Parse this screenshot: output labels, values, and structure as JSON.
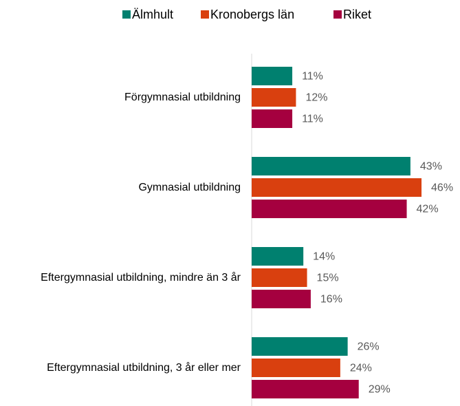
{
  "chart_data": {
    "type": "hbar",
    "categories": [
      "Förgymnasial utbildning",
      "Gymnasial utbildning",
      "Eftergymnasial utbildning, mindre än 3 år",
      "Eftergymnasial utbildning, 3 år eller mer"
    ],
    "series": [
      {
        "name": "Älmhult",
        "color": "#00806f",
        "values": [
          11,
          43,
          14,
          26
        ],
        "value_labels": [
          "11%",
          "43%",
          "14%",
          "26%"
        ]
      },
      {
        "name": "Kronobergs län",
        "color": "#d9400f",
        "values": [
          12,
          46,
          15,
          24
        ],
        "value_labels": [
          "12%",
          "46%",
          "15%",
          "24%"
        ]
      },
      {
        "name": "Riket",
        "color": "#a5003f",
        "values": [
          11,
          42,
          16,
          29
        ],
        "value_labels": [
          "11%",
          "42%",
          "16%",
          "29%"
        ]
      }
    ],
    "legend": "top"
  }
}
